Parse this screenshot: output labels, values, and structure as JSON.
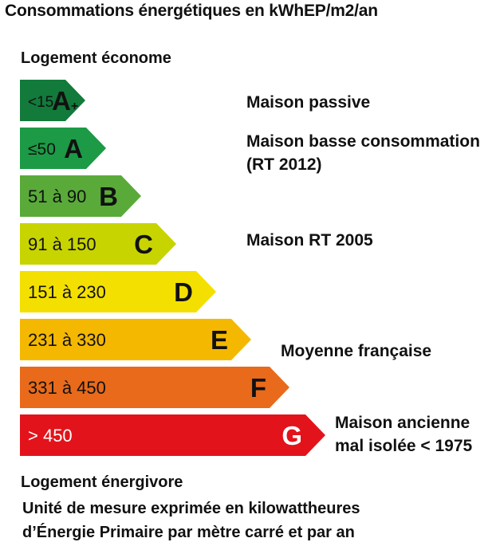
{
  "title": "Consommations énergétiques en kWhEP/m2/an",
  "label_top": "Logement économe",
  "label_bottom": "Logement énergivore",
  "footnote": {
    "line1": "Unité de mesure exprimée en kilowattheures",
    "line2": "d’Énergie Primaire par mètre carré et par an"
  },
  "chart_data": {
    "type": "bar",
    "categories": [
      "A+",
      "A",
      "B",
      "C",
      "D",
      "E",
      "F",
      "G"
    ],
    "ranges": [
      "<15",
      "≤50",
      "51 à 90",
      "91 à 150",
      "151 à 230",
      "231 à 330",
      "331 à 450",
      "> 450"
    ],
    "colors": [
      "#127a3a",
      "#1c9a46",
      "#5aaa3a",
      "#c8d400",
      "#f4e000",
      "#f5b800",
      "#e86a1a",
      "#e3131b"
    ],
    "range_text_colors": [
      "#111111",
      "#111111",
      "#111111",
      "#111111",
      "#111111",
      "#111111",
      "#111111",
      "#ffffff"
    ],
    "letter_text_colors": [
      "#111111",
      "#111111",
      "#111111",
      "#111111",
      "#111111",
      "#111111",
      "#111111",
      "#ffffff"
    ],
    "annotations": [
      {
        "class": "A+",
        "lines": [
          "Maison passive"
        ]
      },
      {
        "class": "A",
        "lines": [
          "Maison basse consommation",
          "(RT 2012)"
        ]
      },
      {
        "class": "C",
        "lines": [
          "Maison RT 2005"
        ]
      },
      {
        "class": "E",
        "lines": [
          "Moyenne française"
        ]
      },
      {
        "class": "G",
        "lines": [
          "Maison ancienne",
          "mal isolée < 1975"
        ]
      }
    ]
  }
}
